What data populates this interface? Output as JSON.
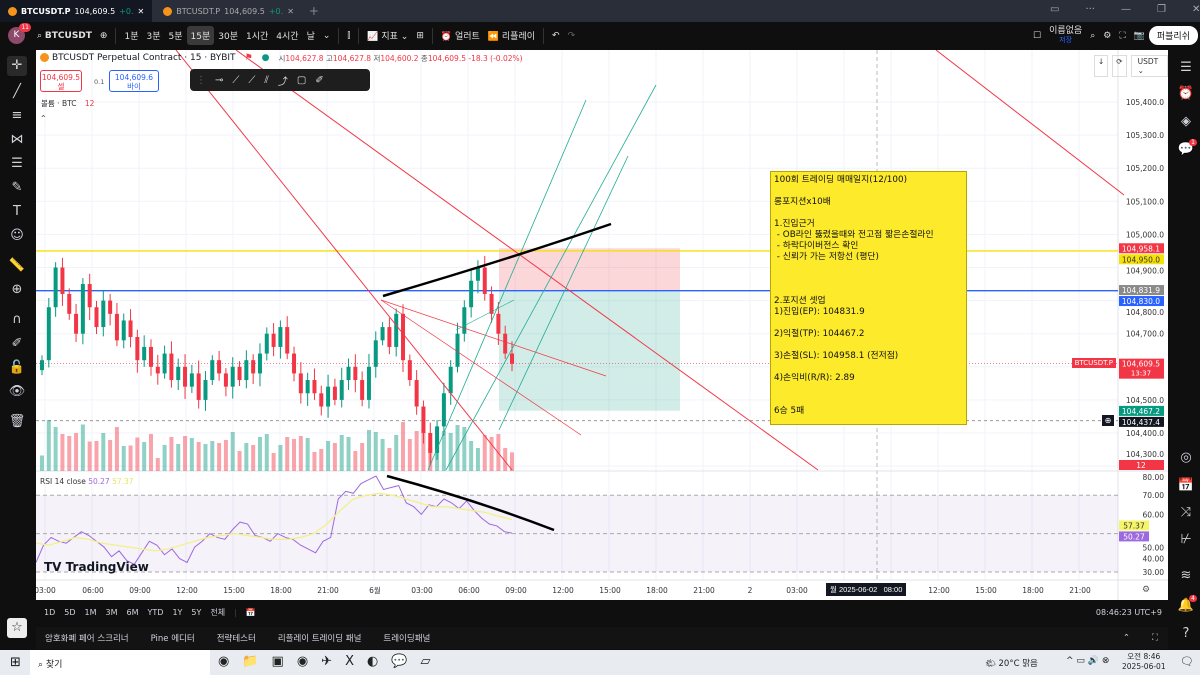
{
  "tabs": [
    {
      "symbol": "BTCUSDT.P",
      "price": "104,609.5",
      "change": "+0."
    },
    {
      "symbol": "BTCUSDT.P",
      "price": "104,609.5",
      "change": "+0."
    }
  ],
  "toolbar": {
    "avatar": "K",
    "avatar_badge": "11",
    "symbol": "BTCUSDT",
    "intervals": [
      "1분",
      "3분",
      "5분",
      "15분",
      "30분",
      "1시간",
      "4시간",
      "날"
    ],
    "selected_interval": "15분",
    "indicators": "지표",
    "alert": "얼러트",
    "replay": "리플레이",
    "layout_name": "이름없음",
    "layout_status": "저장",
    "publish": "퍼블리쉬"
  },
  "legend": {
    "title": "BTCUSDT Perpetual Contract · 15 · BYBIT",
    "o_label": "시",
    "o": "104,627.8",
    "h_label": "고",
    "h": "104,627.8",
    "l_label": "저",
    "l": "104,600.2",
    "c_label": "종",
    "c": "104,609.5",
    "change": "-18.3 (-0.02%)",
    "sell_price": "104,609.5",
    "sell_label": "셀",
    "spread": "0.1",
    "buy_price": "104,609.6",
    "buy_label": "바이",
    "volume_label": "볼륨 · BTC",
    "volume_value": "12"
  },
  "note": {
    "lines": [
      "100회 트레이딩 매매일지(12/100)",
      "",
      "롱포지션x10배",
      "",
      "1.진입근거",
      " - OB라인 뚫렸을때와 전고점 짧은손절라인",
      " - 하락다이버전스 확인",
      " - 신뢰가 가는 저항선 (평단)",
      "",
      "",
      "",
      "2.포지션 셋업",
      "1)진입(EP): 104831.9",
      "",
      "2)익절(TP): 104467.2",
      "",
      "3)손절(SL): 104958.1 (전저점)",
      "",
      "4)손익비(R/R): 2.89",
      "",
      "",
      "6승 5패"
    ]
  },
  "price_axis": {
    "currency": "USDT",
    "ticks": [
      "105,400.0",
      "105,300.0",
      "105,200.0",
      "105,100.0",
      "105,000.0",
      "104,900.0",
      "104,800.0",
      "104,700.0",
      "104,500.0",
      "104,400.0",
      "104,300.0"
    ],
    "labels": [
      {
        "text": "104,958.1",
        "color": "#f23645"
      },
      {
        "text": "104,950.0",
        "color": "#f5e10b"
      },
      {
        "text": "104,831.9",
        "color": "#8a8a8a"
      },
      {
        "text": "104,830.0",
        "color": "#2962ff"
      },
      {
        "text": "104,609.5",
        "sub": "13:37",
        "color": "#f23645"
      },
      {
        "text": "104,467.2",
        "color": "#089981"
      },
      {
        "text": "104,437.4",
        "color": "#131722"
      },
      {
        "text": "12",
        "color": "#f23645"
      }
    ],
    "symbol_tag": "BTCUSDT.P"
  },
  "rsi": {
    "label": "RSI 14 close",
    "value": "50.27",
    "ma": "57.37",
    "ticks": [
      "80.00",
      "70.00",
      "60.00",
      "50.00",
      "40.00",
      "30.00"
    ],
    "value_color": "#9c6ade",
    "ma_color": "#f5f56b"
  },
  "time_axis": {
    "ticks": [
      "03:00",
      "06:00",
      "09:00",
      "12:00",
      "15:00",
      "18:00",
      "21:00",
      "6월",
      "03:00",
      "06:00",
      "09:00",
      "12:00",
      "15:00",
      "18:00",
      "21:00",
      "2",
      "03:00",
      "12:00",
      "15:00",
      "18:00",
      "21:00"
    ],
    "crosshair": "월 2025-06-02   08:00"
  },
  "chart_data": {
    "type": "candlestick",
    "closes": [
      104620,
      104780,
      104900,
      104820,
      104760,
      104700,
      104850,
      104780,
      104720,
      104800,
      104760,
      104680,
      104740,
      104690,
      104620,
      104660,
      104600,
      104580,
      104640,
      104560,
      104600,
      104540,
      104580,
      104500,
      104560,
      104620,
      104580,
      104540,
      104600,
      104560,
      104620,
      104580,
      104640,
      104700,
      104660,
      104720,
      104640,
      104580,
      104520,
      104560,
      104520,
      104480,
      104540,
      104500,
      104560,
      104600,
      104560,
      104500,
      104600,
      104680,
      104720,
      104660,
      104760,
      104620,
      104560,
      104480,
      104400,
      104340,
      104420,
      104520,
      104600,
      104700,
      104780,
      104860,
      104900,
      104820,
      104760,
      104700,
      104640,
      104609.5
    ],
    "rsi_values": [
      35,
      44,
      48,
      46,
      45,
      48,
      51,
      49,
      46,
      43,
      38,
      41,
      36,
      34,
      40,
      46,
      44,
      39,
      42,
      37,
      35,
      43,
      46,
      50,
      48,
      47,
      52,
      56,
      55,
      49,
      48,
      46,
      50,
      48,
      47,
      44,
      42,
      40,
      46,
      48,
      68,
      72,
      71,
      76,
      78,
      80,
      73,
      74,
      75,
      66,
      64,
      60,
      65,
      64,
      68,
      66,
      63,
      67,
      62,
      58,
      55,
      54,
      51,
      50.27
    ],
    "rsi_ma": [
      45,
      44,
      46,
      48,
      47,
      45,
      44,
      43,
      42,
      41,
      42,
      44,
      46,
      48,
      49,
      50,
      49,
      48,
      47,
      47,
      48,
      50,
      55,
      62,
      68,
      70,
      71,
      70,
      68,
      66,
      64,
      64,
      63,
      62,
      61,
      59,
      57.37
    ]
  },
  "bottom": {
    "ranges": [
      "1D",
      "5D",
      "1M",
      "3M",
      "6M",
      "YTD",
      "1Y",
      "5Y",
      "전체"
    ],
    "clock": "08:46:23 UTC+9",
    "panels": [
      "암호화폐 페어 스크리너",
      "Pine 에디터",
      "전략테스터",
      "리플레이 트레이딩 패널",
      "트레이딩패널"
    ],
    "watermark": "TradingView"
  },
  "taskbar": {
    "search": "찾기",
    "weather": "20°C 맑음",
    "time": "오전 8:46",
    "date": "2025-06-01"
  },
  "sidebar_badges": {
    "chat": "1",
    "alerts": "4"
  }
}
